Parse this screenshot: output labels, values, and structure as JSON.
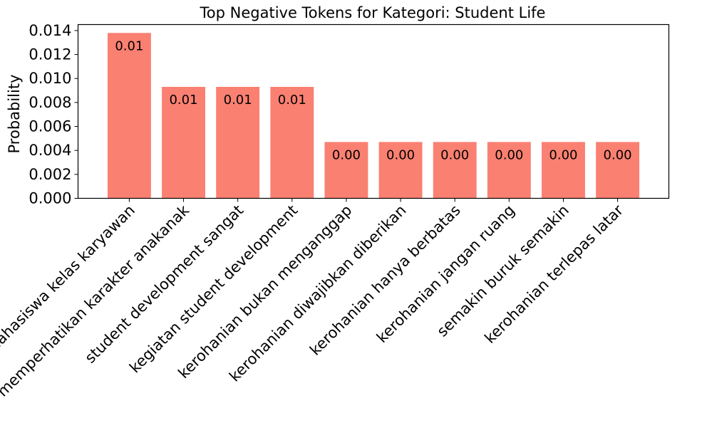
{
  "chart_data": {
    "type": "bar",
    "title": "Top Negative Tokens for Kategori: Student Life",
    "xlabel": "",
    "ylabel": "Probability",
    "categories": [
      "mahasiswa kelas karyawan",
      "memperhatikan karakter anakanak",
      "student development sangat",
      "kegiatan student development",
      "kerohanian bukan menganggap",
      "kerohanian diwajibkan diberikan",
      "kerohanian hanya berbatas",
      "kerohanian jangan ruang",
      "semakin buruk semakin",
      "kerohanian terlepas latar"
    ],
    "values": [
      0.0138,
      0.0093,
      0.0093,
      0.0093,
      0.0047,
      0.0047,
      0.0047,
      0.0047,
      0.0047,
      0.0047
    ],
    "data_labels": [
      "0.01",
      "0.01",
      "0.01",
      "0.01",
      "0.00",
      "0.00",
      "0.00",
      "0.00",
      "0.00",
      "0.00"
    ],
    "ylim": [
      0,
      0.0145
    ],
    "yticks": [
      0.0,
      0.002,
      0.004,
      0.006,
      0.008,
      0.01,
      0.012,
      0.014
    ],
    "ytick_labels": [
      "0.000",
      "0.002",
      "0.004",
      "0.006",
      "0.008",
      "0.010",
      "0.012",
      "0.014"
    ],
    "bar_color": "#fa8072",
    "grid": false,
    "legend": "none"
  }
}
